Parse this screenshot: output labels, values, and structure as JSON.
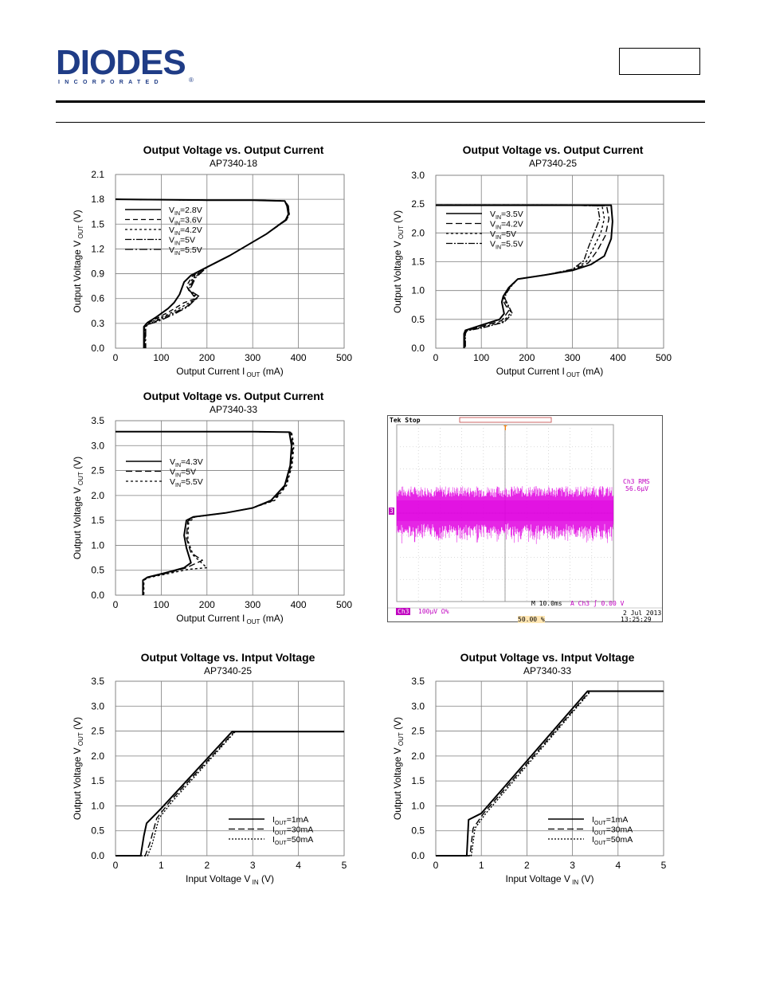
{
  "header": {
    "logo_text": "DIODES",
    "logo_sub": "INCORPORATED",
    "part_box_text": ""
  },
  "chart_data": [
    {
      "type": "line",
      "title": "Output Voltage vs. Output Current",
      "subtitle": "AP7340-18",
      "xlabel": "Output Current I OUT (mA)",
      "ylabel": "Output Voltage V OUT (V)",
      "xlim": [
        0,
        500
      ],
      "ylim": [
        0,
        2.1
      ],
      "xticks": [
        "0",
        "100",
        "200",
        "300",
        "400",
        "500"
      ],
      "yticks": [
        "0.0",
        "0.3",
        "0.6",
        "0.9",
        "1.2",
        "1.5",
        "1.8",
        "2.1"
      ],
      "grid": true,
      "legend_position": "top-left",
      "series": [
        {
          "name": "VIN=2.8V",
          "dash": "solid",
          "x": [
            0,
            200,
            300,
            370,
            375,
            378,
            372,
            330,
            250,
            200,
            165,
            150,
            140,
            128,
            115,
            90,
            70,
            62,
            62
          ],
          "y": [
            1.8,
            1.79,
            1.79,
            1.78,
            1.72,
            1.62,
            1.55,
            1.38,
            1.12,
            0.98,
            0.88,
            0.8,
            0.65,
            0.55,
            0.48,
            0.38,
            0.31,
            0.26,
            0.0
          ]
        },
        {
          "name": "VIN=3.6V",
          "dash": "6,4",
          "x": [
            0,
            200,
            300,
            370,
            376,
            378,
            372,
            330,
            250,
            200,
            168,
            155,
            175,
            150,
            120,
            90,
            70,
            63,
            63
          ],
          "y": [
            1.8,
            1.79,
            1.79,
            1.78,
            1.72,
            1.62,
            1.55,
            1.38,
            1.12,
            0.98,
            0.87,
            0.75,
            0.6,
            0.55,
            0.45,
            0.36,
            0.3,
            0.26,
            0.0
          ]
        },
        {
          "name": "VIN=4.2V",
          "dash": "3,3",
          "x": [
            0,
            200,
            300,
            370,
            377,
            379,
            373,
            330,
            250,
            200,
            170,
            158,
            178,
            152,
            122,
            92,
            71,
            64,
            64
          ],
          "y": [
            1.8,
            1.79,
            1.79,
            1.78,
            1.72,
            1.62,
            1.55,
            1.38,
            1.12,
            0.98,
            0.86,
            0.72,
            0.6,
            0.52,
            0.43,
            0.35,
            0.3,
            0.26,
            0.0
          ]
        },
        {
          "name": "VIN=5V",
          "dash": "8,2,2,2",
          "x": [
            0,
            200,
            300,
            370,
            377,
            380,
            374,
            330,
            250,
            200,
            172,
            160,
            180,
            155,
            125,
            94,
            72,
            65,
            65
          ],
          "y": [
            1.8,
            1.79,
            1.79,
            1.78,
            1.72,
            1.62,
            1.55,
            1.38,
            1.12,
            0.98,
            0.85,
            0.7,
            0.62,
            0.5,
            0.42,
            0.34,
            0.29,
            0.26,
            0.0
          ]
        },
        {
          "name": "VIN=5.5V",
          "dash": "10,3,2,3",
          "x": [
            0,
            200,
            300,
            370,
            378,
            380,
            374,
            330,
            250,
            200,
            175,
            162,
            182,
            158,
            128,
            96,
            73,
            66,
            66
          ],
          "y": [
            1.8,
            1.79,
            1.79,
            1.78,
            1.72,
            1.62,
            1.55,
            1.38,
            1.12,
            0.98,
            0.85,
            0.7,
            0.63,
            0.5,
            0.41,
            0.33,
            0.29,
            0.26,
            0.0
          ]
        }
      ]
    },
    {
      "type": "line",
      "title": "Output Voltage vs. Output Current",
      "subtitle": "AP7340-25",
      "xlabel": "Output Current I OUT (mA)",
      "ylabel": "Output Voltage V OUT (V)",
      "xlim": [
        0,
        500
      ],
      "ylim": [
        0,
        3.0
      ],
      "xticks": [
        "0",
        "100",
        "200",
        "300",
        "400",
        "500"
      ],
      "yticks": [
        "0.0",
        "0.5",
        "1.0",
        "1.5",
        "2.0",
        "2.5",
        "3.0"
      ],
      "grid": true,
      "legend_position": "top-left",
      "series": [
        {
          "name": "VIN=3.5V",
          "dash": "solid",
          "x": [
            0,
            200,
            300,
            385,
            388,
            385,
            370,
            340,
            300,
            240,
            180,
            160,
            148,
            145,
            150,
            140,
            100,
            65,
            62,
            62
          ],
          "y": [
            2.48,
            2.48,
            2.48,
            2.48,
            2.2,
            1.9,
            1.6,
            1.45,
            1.35,
            1.27,
            1.2,
            1.05,
            0.9,
            0.8,
            0.6,
            0.5,
            0.4,
            0.31,
            0.25,
            0.0
          ]
        },
        {
          "name": "VIN=4.2V",
          "dash": "8,4",
          "x": [
            0,
            200,
            300,
            375,
            380,
            372,
            355,
            335,
            300,
            240,
            180,
            160,
            150,
            148,
            160,
            145,
            102,
            66,
            63,
            63
          ],
          "y": [
            2.48,
            2.48,
            2.48,
            2.47,
            2.25,
            1.95,
            1.7,
            1.48,
            1.35,
            1.27,
            1.2,
            1.05,
            0.92,
            0.82,
            0.65,
            0.48,
            0.38,
            0.3,
            0.25,
            0.0
          ]
        },
        {
          "name": "VIN=5V",
          "dash": "3,3",
          "x": [
            0,
            200,
            300,
            365,
            370,
            362,
            345,
            330,
            300,
            240,
            180,
            162,
            152,
            150,
            165,
            148,
            104,
            67,
            64,
            64
          ],
          "y": [
            2.48,
            2.48,
            2.48,
            2.47,
            2.25,
            2.0,
            1.72,
            1.5,
            1.36,
            1.27,
            1.2,
            1.05,
            0.93,
            0.85,
            0.62,
            0.46,
            0.37,
            0.3,
            0.25,
            0.0
          ]
        },
        {
          "name": "VIN=5.5V",
          "dash": "8,2,2,2",
          "x": [
            0,
            200,
            300,
            355,
            360,
            350,
            335,
            325,
            300,
            240,
            180,
            163,
            154,
            152,
            168,
            150,
            106,
            68,
            65,
            65
          ],
          "y": [
            2.48,
            2.48,
            2.48,
            2.47,
            2.25,
            2.05,
            1.75,
            1.52,
            1.37,
            1.27,
            1.2,
            1.05,
            0.94,
            0.86,
            0.6,
            0.45,
            0.36,
            0.3,
            0.25,
            0.0
          ]
        }
      ]
    },
    {
      "type": "line",
      "title": "Output Voltage vs. Output Current",
      "subtitle": "AP7340-33",
      "xlabel": "Output Current I OUT (mA)",
      "ylabel": "Output Voltage V OUT (V)",
      "xlim": [
        0,
        500
      ],
      "ylim": [
        0,
        3.5
      ],
      "xticks": [
        "0",
        "100",
        "200",
        "300",
        "400",
        "500"
      ],
      "yticks": [
        "0.0",
        "0.5",
        "1.0",
        "1.5",
        "2.0",
        "2.5",
        "3.0",
        "3.5"
      ],
      "grid": true,
      "legend_position": "top-left",
      "series": [
        {
          "name": "VIN=4.3V",
          "dash": "solid",
          "x": [
            0,
            200,
            300,
            380,
            385,
            382,
            370,
            340,
            300,
            240,
            170,
            155,
            150,
            155,
            165,
            150,
            110,
            70,
            60,
            60
          ],
          "y": [
            3.28,
            3.28,
            3.28,
            3.27,
            3.0,
            2.6,
            2.2,
            1.9,
            1.75,
            1.65,
            1.57,
            1.5,
            1.2,
            0.95,
            0.65,
            0.55,
            0.45,
            0.36,
            0.3,
            0.0
          ]
        },
        {
          "name": "VIN=5V",
          "dash": "8,4",
          "x": [
            0,
            200,
            300,
            383,
            388,
            384,
            372,
            345,
            300,
            240,
            172,
            158,
            155,
            165,
            190,
            155,
            112,
            71,
            61,
            61
          ],
          "y": [
            3.28,
            3.28,
            3.28,
            3.27,
            3.0,
            2.6,
            2.2,
            1.9,
            1.75,
            1.65,
            1.57,
            1.48,
            1.15,
            0.85,
            0.7,
            0.55,
            0.44,
            0.36,
            0.3,
            0.0
          ]
        },
        {
          "name": "VIN=5.5V",
          "dash": "3,3",
          "x": [
            0,
            200,
            300,
            385,
            390,
            386,
            374,
            348,
            300,
            240,
            174,
            160,
            158,
            170,
            200,
            160,
            114,
            72,
            62,
            62
          ],
          "y": [
            3.28,
            3.28,
            3.28,
            3.27,
            3.0,
            2.6,
            2.2,
            1.9,
            1.75,
            1.65,
            1.57,
            1.46,
            1.1,
            0.8,
            0.55,
            0.52,
            0.43,
            0.35,
            0.3,
            0.0
          ]
        }
      ]
    },
    {
      "type": "line",
      "title": "Output Voltage vs. Intput Voltage",
      "subtitle": "AP7340-25",
      "xlabel": "Input Voltage V IN (V)",
      "ylabel": "Output Voltage V OUT (V)",
      "xlim": [
        0,
        5
      ],
      "ylim": [
        0,
        3.5
      ],
      "xticks": [
        "0",
        "1",
        "2",
        "3",
        "4",
        "5"
      ],
      "yticks": [
        "0.0",
        "0.5",
        "1.0",
        "1.5",
        "2.0",
        "2.5",
        "3.0",
        "3.5"
      ],
      "grid": true,
      "legend_position": "bottom-right",
      "series": [
        {
          "name": "IOUT=1mA",
          "dash": "solid",
          "x": [
            0,
            0.55,
            0.62,
            0.68,
            1.0,
            2.55,
            5.0
          ],
          "y": [
            0,
            0,
            0.4,
            0.65,
            0.95,
            2.49,
            2.49
          ]
        },
        {
          "name": "IOUT=30mA",
          "dash": "8,4",
          "x": [
            0,
            0.65,
            0.75,
            0.9,
            1.2,
            2.6,
            5.0
          ],
          "y": [
            0,
            0,
            0.25,
            0.75,
            1.1,
            2.49,
            2.49
          ]
        },
        {
          "name": "IOUT=50mA",
          "dash": "2,2",
          "x": [
            0,
            0.7,
            0.8,
            0.95,
            1.25,
            2.62,
            5.0
          ],
          "y": [
            0,
            0,
            0.22,
            0.75,
            1.1,
            2.49,
            2.49
          ]
        }
      ]
    },
    {
      "type": "line",
      "title": "Output Voltage vs. Intput Voltage",
      "subtitle": "AP7340-33",
      "xlabel": "Input Voltage V IN (V)",
      "ylabel": "Output Voltage V OUT (V)",
      "xlim": [
        0,
        5
      ],
      "ylim": [
        0,
        3.5
      ],
      "xticks": [
        "0",
        "1",
        "2",
        "3",
        "4",
        "5"
      ],
      "yticks": [
        "0.0",
        "0.5",
        "1.0",
        "1.5",
        "2.0",
        "2.5",
        "3.0",
        "3.5"
      ],
      "grid": true,
      "legend_position": "bottom-right",
      "series": [
        {
          "name": "IOUT=1mA",
          "dash": "solid",
          "x": [
            0,
            0.68,
            0.72,
            1.0,
            3.33,
            5.0
          ],
          "y": [
            0,
            0,
            0.72,
            0.85,
            3.3,
            3.3
          ]
        },
        {
          "name": "IOUT=30mA",
          "dash": "8,4",
          "x": [
            0,
            0.75,
            0.82,
            1.05,
            3.38,
            5.0
          ],
          "y": [
            0,
            0,
            0.55,
            0.85,
            3.3,
            3.3
          ]
        },
        {
          "name": "IOUT=50mA",
          "dash": "2,2",
          "x": [
            0,
            0.78,
            0.86,
            1.1,
            3.4,
            5.0
          ],
          "y": [
            0,
            0,
            0.55,
            0.85,
            3.3,
            3.3
          ]
        }
      ]
    }
  ],
  "scope": {
    "status": "Tek Stop",
    "channel_marker": "3",
    "trigger_marker": "T",
    "measure_label": "Ch3 RMS",
    "measure_value": "56.6µV",
    "ch_scale_label": "Ch3",
    "ch_scale_value": "100µV Ω%",
    "timebase": "M 10.0ms",
    "trigger_info": "A  Ch3 ∫ 0.00 V",
    "trigger_position": "50.00 %",
    "date": "2 Jul  2013",
    "time": "13:25:29",
    "colors": {
      "trace": "#e000e0",
      "measure": "#c000c0",
      "trigger": "#ff8000"
    }
  }
}
